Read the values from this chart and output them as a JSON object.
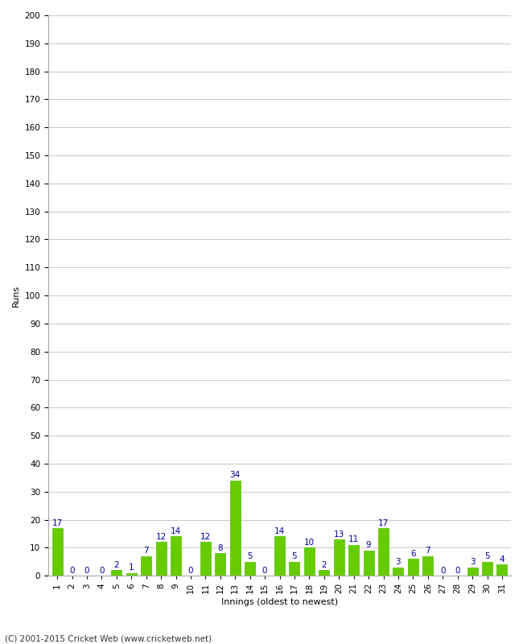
{
  "values": [
    17,
    0,
    0,
    0,
    2,
    1,
    7,
    12,
    14,
    0,
    12,
    8,
    34,
    5,
    0,
    14,
    5,
    10,
    2,
    13,
    11,
    9,
    17,
    3,
    6,
    7,
    0,
    0,
    3,
    5,
    4
  ],
  "bar_color": "#66cc00",
  "bar_edge_color": "#55bb00",
  "label_color": "#000099",
  "ylabel": "Runs",
  "xlabel": "Innings (oldest to newest)",
  "ylim": [
    0,
    200
  ],
  "yticks": [
    0,
    10,
    20,
    30,
    40,
    50,
    60,
    70,
    80,
    90,
    100,
    110,
    120,
    130,
    140,
    150,
    160,
    170,
    180,
    190,
    200
  ],
  "footer": "(C) 2001-2015 Cricket Web (www.cricketweb.net)",
  "background_color": "#ffffff",
  "grid_color": "#cccccc",
  "label_fontsize": 7.5,
  "axis_fontsize": 7.5,
  "ylabel_fontsize": 8,
  "xlabel_fontsize": 8
}
